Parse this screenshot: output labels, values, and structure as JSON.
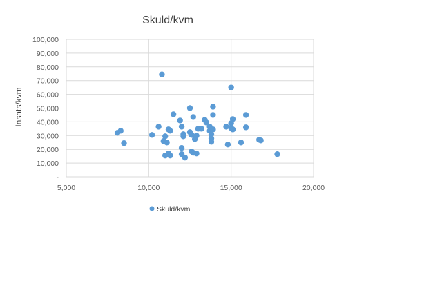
{
  "chart_data": {
    "type": "scatter",
    "title": "Skuld/kvm",
    "xlabel": "",
    "ylabel": "Insats/kvm",
    "xlim": [
      5000,
      20000
    ],
    "ylim": [
      0,
      100000
    ],
    "xticks": [
      5000,
      10000,
      15000,
      20000
    ],
    "xtick_labels": [
      "5,000",
      "10,000",
      "15,000",
      "20,000"
    ],
    "yticks": [
      0,
      10000,
      20000,
      30000,
      40000,
      50000,
      60000,
      70000,
      80000,
      90000,
      100000
    ],
    "ytick_labels": [
      "-",
      "10,000",
      "20,000",
      "30,000",
      "40,000",
      "50,000",
      "60,000",
      "70,000",
      "80,000",
      "90,000",
      "100,000"
    ],
    "grid": {
      "x": true,
      "y": true
    },
    "legend_position": "bottom",
    "marker_color": "#5B9BD5",
    "series": [
      {
        "name": "Skuld/kvm",
        "x": [
          8100,
          8300,
          8500,
          10200,
          10600,
          10800,
          10900,
          11000,
          11000,
          11100,
          11200,
          11200,
          11300,
          11300,
          11500,
          11900,
          12000,
          12000,
          12000,
          12100,
          12100,
          12200,
          12500,
          12500,
          12600,
          12600,
          12700,
          12700,
          12800,
          12900,
          12900,
          13000,
          13200,
          13400,
          13500,
          13700,
          13700,
          13800,
          13800,
          13800,
          13900,
          13900,
          13900,
          14700,
          14800,
          15000,
          15000,
          15000,
          15100,
          15100,
          15600,
          15900,
          15900,
          16700,
          16800,
          17800
        ],
        "y": [
          32000,
          33500,
          24500,
          30500,
          36500,
          74500,
          26000,
          15500,
          29500,
          25000,
          34500,
          17000,
          33500,
          15500,
          45500,
          41000,
          36500,
          21000,
          16500,
          31000,
          29500,
          14000,
          50000,
          32500,
          30500,
          18500,
          43500,
          17500,
          27500,
          17000,
          30000,
          35000,
          35000,
          41500,
          39500,
          33500,
          36500,
          31000,
          28000,
          25500,
          45000,
          51000,
          34500,
          36500,
          23500,
          65000,
          35500,
          39000,
          34500,
          42000,
          25000,
          45000,
          36000,
          27000,
          26500,
          16500
        ]
      }
    ]
  }
}
